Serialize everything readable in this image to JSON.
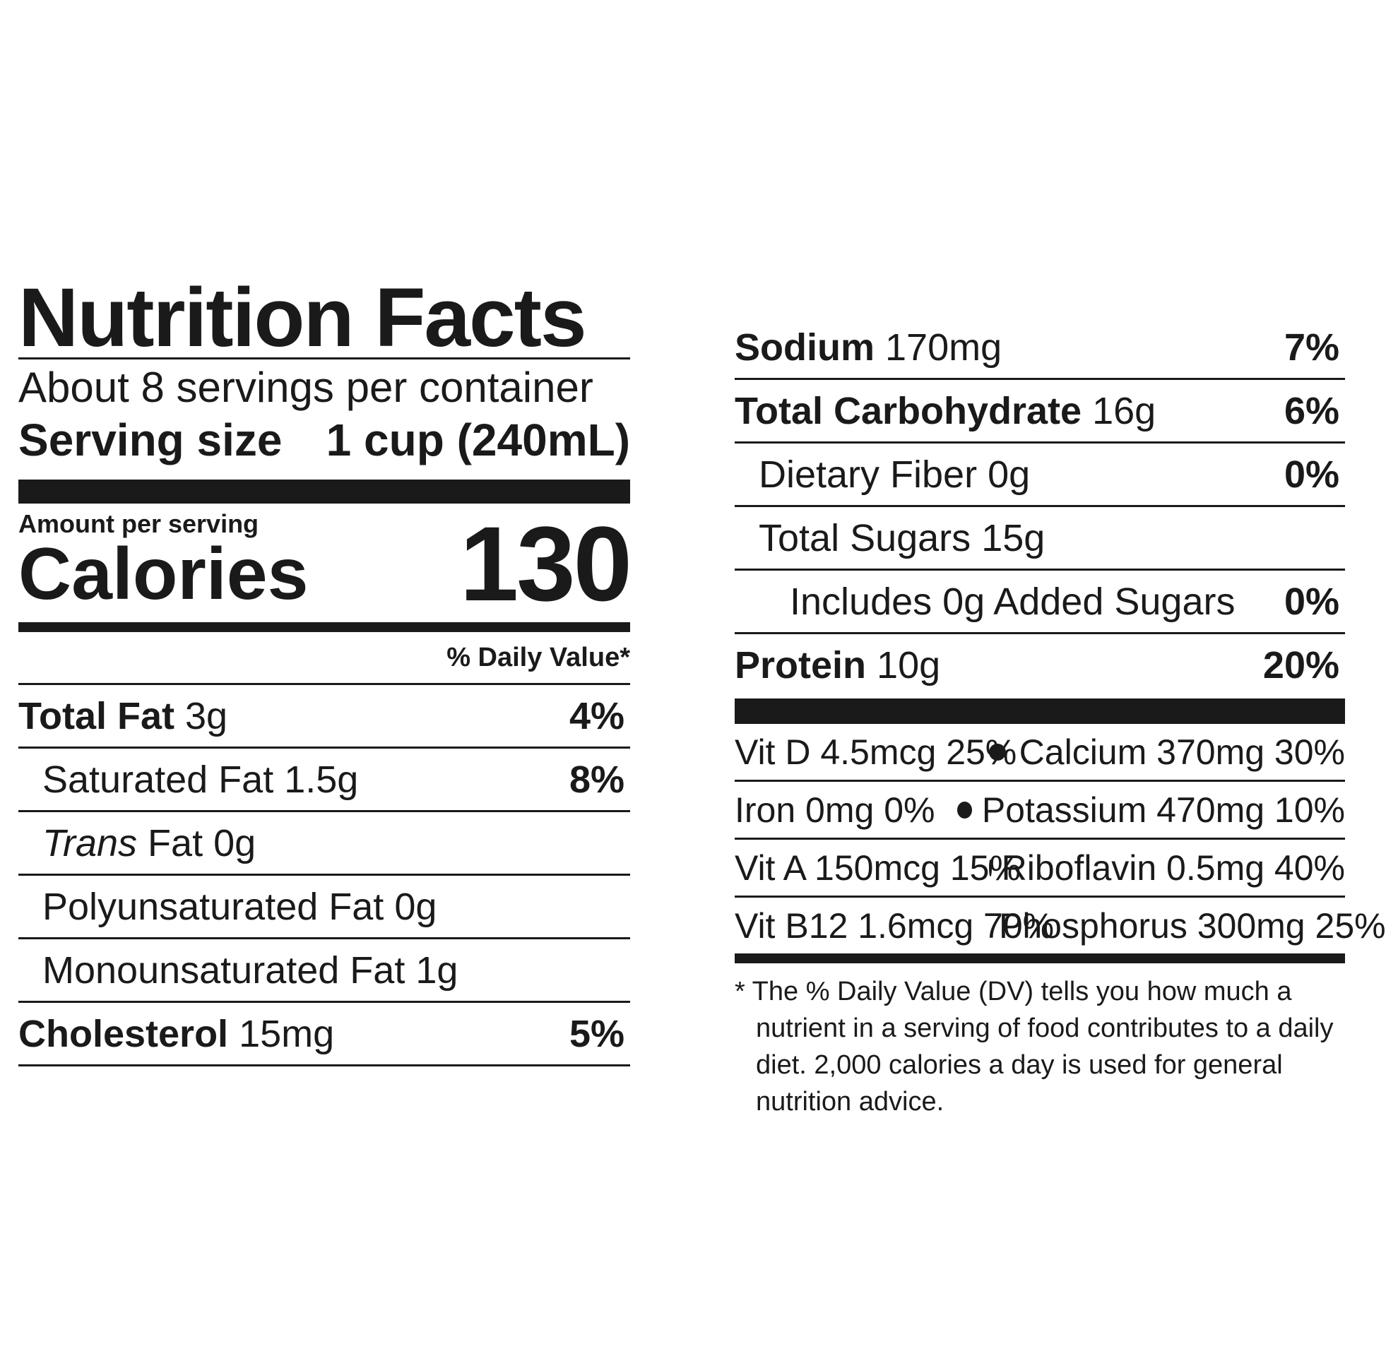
{
  "label": {
    "title": "Nutrition Facts",
    "servings_per_container": "About 8 servings per container",
    "serving_size_label": "Serving size",
    "serving_size_value": "1 cup (240mL)",
    "amount_per_serving": "Amount per serving",
    "calories_label": "Calories",
    "calories_value": "130",
    "daily_value_header": "% Daily Value*"
  },
  "left_nutrients": [
    {
      "name": "Total Fat",
      "amount": "3g",
      "dv": "4%"
    },
    {
      "name": "Saturated Fat",
      "amount": "1.5g",
      "dv": "8%"
    },
    {
      "name_italic": "Trans",
      "name": "Fat",
      "amount": "0g",
      "dv": ""
    },
    {
      "name": "Polyunsaturated Fat",
      "amount": "0g",
      "dv": ""
    },
    {
      "name": "Monounsaturated Fat",
      "amount": "1g",
      "dv": ""
    },
    {
      "name": "Cholesterol",
      "amount": "15mg",
      "dv": "5%"
    }
  ],
  "right_nutrients": [
    {
      "name": "Sodium",
      "amount": "170mg",
      "dv": "7%"
    },
    {
      "name": "Total Carbohydrate",
      "amount": "16g",
      "dv": "6%"
    },
    {
      "name": "Dietary Fiber",
      "amount": "0g",
      "dv": "0%"
    },
    {
      "name": "Total Sugars",
      "amount": "15g",
      "dv": ""
    },
    {
      "name": "Includes 0g Added Sugars",
      "amount": "",
      "dv": "0%"
    },
    {
      "name": "Protein",
      "amount": "10g",
      "dv": "20%"
    }
  ],
  "vitamins": [
    {
      "left": "Vit D 4.5mcg 25%",
      "right": "Calcium 370mg 30%"
    },
    {
      "left": "Iron 0mg 0%",
      "right": "Potassium 470mg 10%"
    },
    {
      "left": "Vit A 150mcg 15%",
      "right": "Riboflavin 0.5mg 40%"
    },
    {
      "left": "Vit B12 1.6mcg 70%",
      "right": "Phosphorus 300mg 25%"
    }
  ],
  "footnote": "* The % Daily Value (DV) tells you how much a nutrient in a serving of food contributes to a daily diet. 2,000 calories a day is used for general nutrition advice."
}
